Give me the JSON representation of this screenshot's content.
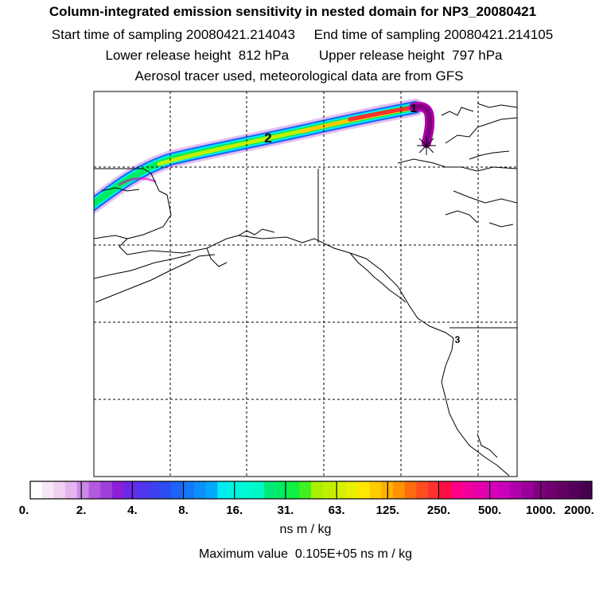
{
  "header": {
    "title": "Column-integrated emission sensitivity in nested domain for NP3_20080421",
    "line2": "Start time of sampling 20080421.214043     End time of sampling 20080421.214105",
    "line3": "Lower release height  812 hPa        Upper release height  797 hPa",
    "line4": "Aerosol tracer used, meteorological data are from GFS"
  },
  "map": {
    "markers": [
      {
        "label": "1"
      },
      {
        "label": "2"
      },
      {
        "label": "3"
      }
    ],
    "release_point_icon": "asterisk-cross-icon"
  },
  "colorbar": {
    "tick_labels": [
      "0.",
      "2.",
      "4.",
      "8.",
      "16.",
      "31.",
      "63.",
      "125.",
      "250.",
      "500.",
      "1000.",
      "2000."
    ],
    "colors": [
      "#ffffff",
      "#f6e6f8",
      "#eed0f2",
      "#e4b4ee",
      "#cc88e6",
      "#b45ae0",
      "#a03edc",
      "#8c1ed8",
      "#6a28e8",
      "#5434ec",
      "#4040f0",
      "#2c4cf4",
      "#1c64f8",
      "#1478fa",
      "#0c90fc",
      "#04a8fc",
      "#00ecee",
      "#00f4e0",
      "#00f8d4",
      "#00f8c4",
      "#00e878",
      "#00ec60",
      "#10f040",
      "#40f020",
      "#a8f000",
      "#c0f000",
      "#d4f000",
      "#e8f000",
      "#ffe800",
      "#ffcc00",
      "#ffb000",
      "#ff9400",
      "#ff6c10",
      "#ff4c20",
      "#ff3030",
      "#ff0c44",
      "#ff0088",
      "#f0009c",
      "#e400ac",
      "#d800b8",
      "#c800b8",
      "#b000ac",
      "#980098",
      "#800080",
      "#700070",
      "#640064",
      "#54005a",
      "#460050"
    ]
  },
  "units": "ns m / kg",
  "max_value": "Maximum value  0.105E+05 ns m / kg"
}
